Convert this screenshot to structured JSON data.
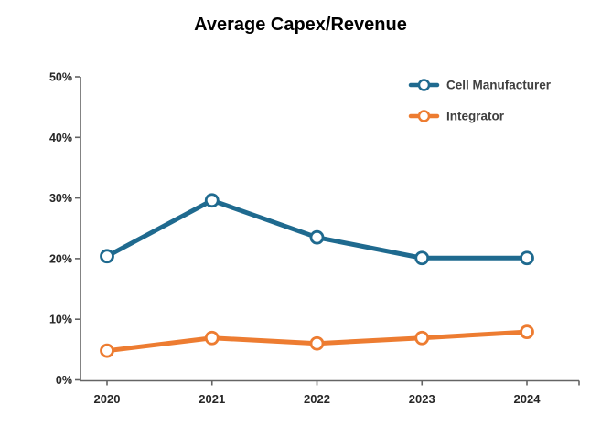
{
  "chart_data": {
    "type": "line",
    "title": "Average Capex/Revenue",
    "categories": [
      "2020",
      "2021",
      "2022",
      "2023",
      "2024"
    ],
    "series": [
      {
        "name": "Cell Manufacturer",
        "color": "#1F6A8F",
        "values": [
          20.4,
          29.6,
          23.5,
          20.1,
          20.1
        ]
      },
      {
        "name": "Integrator",
        "color": "#ED7C31",
        "values": [
          4.8,
          6.9,
          6.0,
          6.9,
          7.9
        ]
      }
    ],
    "xlabel": "",
    "ylabel": "",
    "ylim": [
      0,
      50
    ],
    "ytick_step": 10,
    "ytick_labels": [
      "0%",
      "10%",
      "20%",
      "30%",
      "40%",
      "50%"
    ],
    "grid": false,
    "legend_position": "top-right",
    "marker": "open-circle"
  },
  "colors": {
    "axis": "#646464",
    "tick_label": "#262626",
    "legend_text": "#3F3F3F",
    "title": "#000000",
    "background": "#FFFFFF",
    "marker_fill": "#FFFFFF"
  }
}
